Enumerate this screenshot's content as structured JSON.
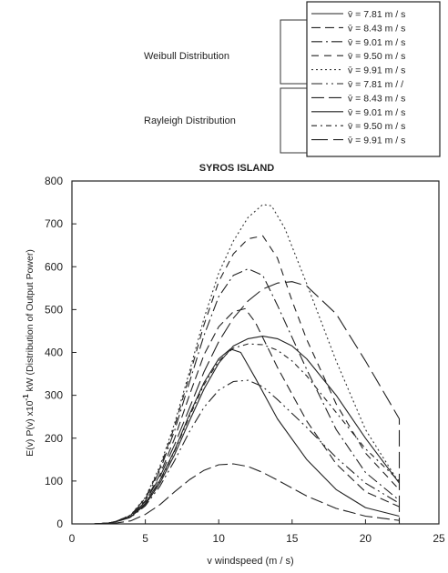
{
  "chart_data": {
    "type": "line",
    "title": "SYROS ISLAND",
    "xlabel": "v windspeed (m / s)",
    "ylabel_parts": {
      "prefix": "E(v) P(v) x10",
      "exponent": "-1",
      "suffix": " kW (Distribution of Output Power)"
    },
    "xlim": [
      0,
      25
    ],
    "ylim": [
      0,
      800
    ],
    "xticks": [
      0,
      5,
      10,
      15,
      20,
      25
    ],
    "yticks": [
      0,
      100,
      200,
      300,
      400,
      500,
      600,
      700,
      800
    ],
    "grid": false,
    "legend": {
      "placement": "top-right",
      "group_labels": [
        "Weibull Distribution",
        "Rayleigh Distribution"
      ],
      "entries": [
        "v̄ = 7.81 m / s",
        "v̄ = 8.43 m / s",
        "v̄ = 9.01 m / s",
        "v̄ = 9.50 m / s",
        "v̄ = 9.91 m / s",
        "v̄ = 7.81 m / /",
        "v̄ = 8.43 m / s",
        "v̄ = 9.01 m / s",
        "v̄ = 9.50 m / s",
        "v̄ = 9.91 m / s"
      ]
    },
    "series": [
      {
        "group": "Weibull",
        "dash": "",
        "color": "#222222",
        "points": [
          [
            1.5,
            0
          ],
          [
            2.5,
            2
          ],
          [
            3,
            5
          ],
          [
            4,
            16
          ],
          [
            5,
            48
          ],
          [
            6,
            102
          ],
          [
            7,
            172
          ],
          [
            8,
            255
          ],
          [
            9,
            330
          ],
          [
            10,
            385
          ],
          [
            10.8,
            408
          ],
          [
            11.5,
            400
          ],
          [
            12.5,
            340
          ],
          [
            14,
            245
          ],
          [
            16,
            150
          ],
          [
            18,
            80
          ],
          [
            20,
            38
          ],
          [
            22.3,
            18
          ]
        ]
      },
      {
        "group": "Weibull",
        "dash": "10,5",
        "color": "#222222",
        "points": [
          [
            1.5,
            0
          ],
          [
            2.5,
            2
          ],
          [
            3,
            5
          ],
          [
            4,
            18
          ],
          [
            5,
            54
          ],
          [
            6,
            115
          ],
          [
            7,
            200
          ],
          [
            8,
            300
          ],
          [
            9,
            395
          ],
          [
            10,
            460
          ],
          [
            11,
            495
          ],
          [
            11.8,
            502
          ],
          [
            12.5,
            470
          ],
          [
            14,
            365
          ],
          [
            16,
            240
          ],
          [
            18,
            140
          ],
          [
            20,
            75
          ],
          [
            22.3,
            40
          ]
        ]
      },
      {
        "group": "Weibull",
        "dash": "12,4,2,4",
        "color": "#222222",
        "points": [
          [
            1.5,
            0
          ],
          [
            2.5,
            2
          ],
          [
            3,
            6
          ],
          [
            4,
            20
          ],
          [
            5,
            58
          ],
          [
            6,
            125
          ],
          [
            7,
            218
          ],
          [
            8,
            330
          ],
          [
            9,
            440
          ],
          [
            10,
            530
          ],
          [
            11,
            580
          ],
          [
            12,
            595
          ],
          [
            13,
            580
          ],
          [
            14,
            510
          ],
          [
            16,
            360
          ],
          [
            18,
            220
          ],
          [
            20,
            120
          ],
          [
            22.3,
            55
          ]
        ]
      },
      {
        "group": "Weibull",
        "dash": "8,6",
        "color": "#222222",
        "points": [
          [
            1.5,
            0
          ],
          [
            2.5,
            2
          ],
          [
            3,
            6
          ],
          [
            4,
            20
          ],
          [
            5,
            60
          ],
          [
            6,
            130
          ],
          [
            7,
            228
          ],
          [
            8,
            345
          ],
          [
            9,
            465
          ],
          [
            10,
            565
          ],
          [
            11,
            630
          ],
          [
            12,
            665
          ],
          [
            13,
            672
          ],
          [
            14,
            620
          ],
          [
            15,
            520
          ],
          [
            16,
            430
          ],
          [
            18,
            280
          ],
          [
            20,
            165
          ],
          [
            22.3,
            80
          ]
        ]
      },
      {
        "group": "Weibull",
        "dash": "2,3",
        "color": "#333333",
        "points": [
          [
            1.5,
            0
          ],
          [
            2.5,
            2
          ],
          [
            3,
            6
          ],
          [
            4,
            21
          ],
          [
            5,
            62
          ],
          [
            6,
            135
          ],
          [
            7,
            235
          ],
          [
            8,
            355
          ],
          [
            9,
            480
          ],
          [
            10,
            585
          ],
          [
            11,
            660
          ],
          [
            12,
            715
          ],
          [
            13,
            745
          ],
          [
            13.6,
            742
          ],
          [
            14.5,
            690
          ],
          [
            16,
            560
          ],
          [
            18,
            380
          ],
          [
            20,
            220
          ],
          [
            22.3,
            95
          ]
        ]
      },
      {
        "group": "Rayleigh",
        "dash": "12,4,2,4,2,4",
        "color": "#222222",
        "points": [
          [
            1.5,
            0
          ],
          [
            2.5,
            2
          ],
          [
            3,
            5
          ],
          [
            4,
            15
          ],
          [
            5,
            42
          ],
          [
            6,
            88
          ],
          [
            7,
            148
          ],
          [
            8,
            215
          ],
          [
            9,
            272
          ],
          [
            10,
            312
          ],
          [
            11,
            332
          ],
          [
            12,
            335
          ],
          [
            13,
            320
          ],
          [
            14,
            290
          ],
          [
            16,
            225
          ],
          [
            18,
            155
          ],
          [
            20,
            95
          ],
          [
            22.3,
            48
          ]
        ]
      },
      {
        "group": "Rayleigh",
        "dash": "14,5",
        "color": "#222222",
        "points": [
          [
            1.5,
            0
          ],
          [
            2.5,
            1
          ],
          [
            3,
            2
          ],
          [
            4,
            7
          ],
          [
            5,
            22
          ],
          [
            6,
            45
          ],
          [
            7,
            75
          ],
          [
            8,
            103
          ],
          [
            9,
            125
          ],
          [
            10,
            138
          ],
          [
            11,
            140
          ],
          [
            12,
            134
          ],
          [
            13,
            120
          ],
          [
            14,
            102
          ],
          [
            16,
            65
          ],
          [
            18,
            36
          ],
          [
            20,
            18
          ],
          [
            22.3,
            8
          ]
        ]
      },
      {
        "group": "Rayleigh",
        "dash": "",
        "color": "#222222",
        "points": [
          [
            1.5,
            0
          ],
          [
            2.5,
            2
          ],
          [
            3,
            5
          ],
          [
            4,
            16
          ],
          [
            5,
            45
          ],
          [
            6,
            95
          ],
          [
            7,
            162
          ],
          [
            8,
            240
          ],
          [
            9,
            315
          ],
          [
            10,
            375
          ],
          [
            11,
            415
          ],
          [
            12,
            432
          ],
          [
            13,
            438
          ],
          [
            14,
            432
          ],
          [
            15,
            415
          ],
          [
            16,
            385
          ],
          [
            18,
            300
          ],
          [
            20,
            200
          ],
          [
            22.3,
            95
          ]
        ]
      },
      {
        "group": "Rayleigh",
        "dash": "6,4,2,4",
        "color": "#222222",
        "points": [
          [
            1.5,
            0
          ],
          [
            2.5,
            2
          ],
          [
            3,
            5
          ],
          [
            4,
            17
          ],
          [
            5,
            48
          ],
          [
            6,
            100
          ],
          [
            7,
            170
          ],
          [
            8,
            250
          ],
          [
            9,
            325
          ],
          [
            10,
            380
          ],
          [
            11,
            410
          ],
          [
            12,
            420
          ],
          [
            13,
            418
          ],
          [
            14,
            405
          ],
          [
            15,
            380
          ],
          [
            16,
            345
          ],
          [
            18,
            260
          ],
          [
            20,
            175
          ],
          [
            22.3,
            100
          ]
        ]
      },
      {
        "group": "Rayleigh",
        "dash": "18,6",
        "color": "#222222",
        "points": [
          [
            1.5,
            0
          ],
          [
            2.5,
            2
          ],
          [
            3,
            5
          ],
          [
            4,
            18
          ],
          [
            5,
            52
          ],
          [
            6,
            110
          ],
          [
            7,
            185
          ],
          [
            8,
            270
          ],
          [
            9,
            355
          ],
          [
            10,
            425
          ],
          [
            11,
            480
          ],
          [
            12,
            520
          ],
          [
            13,
            548
          ],
          [
            14,
            562
          ],
          [
            15,
            565
          ],
          [
            16,
            555
          ],
          [
            18,
            490
          ],
          [
            20,
            380
          ],
          [
            22.3,
            245
          ],
          [
            22.3,
            0
          ]
        ]
      }
    ]
  }
}
